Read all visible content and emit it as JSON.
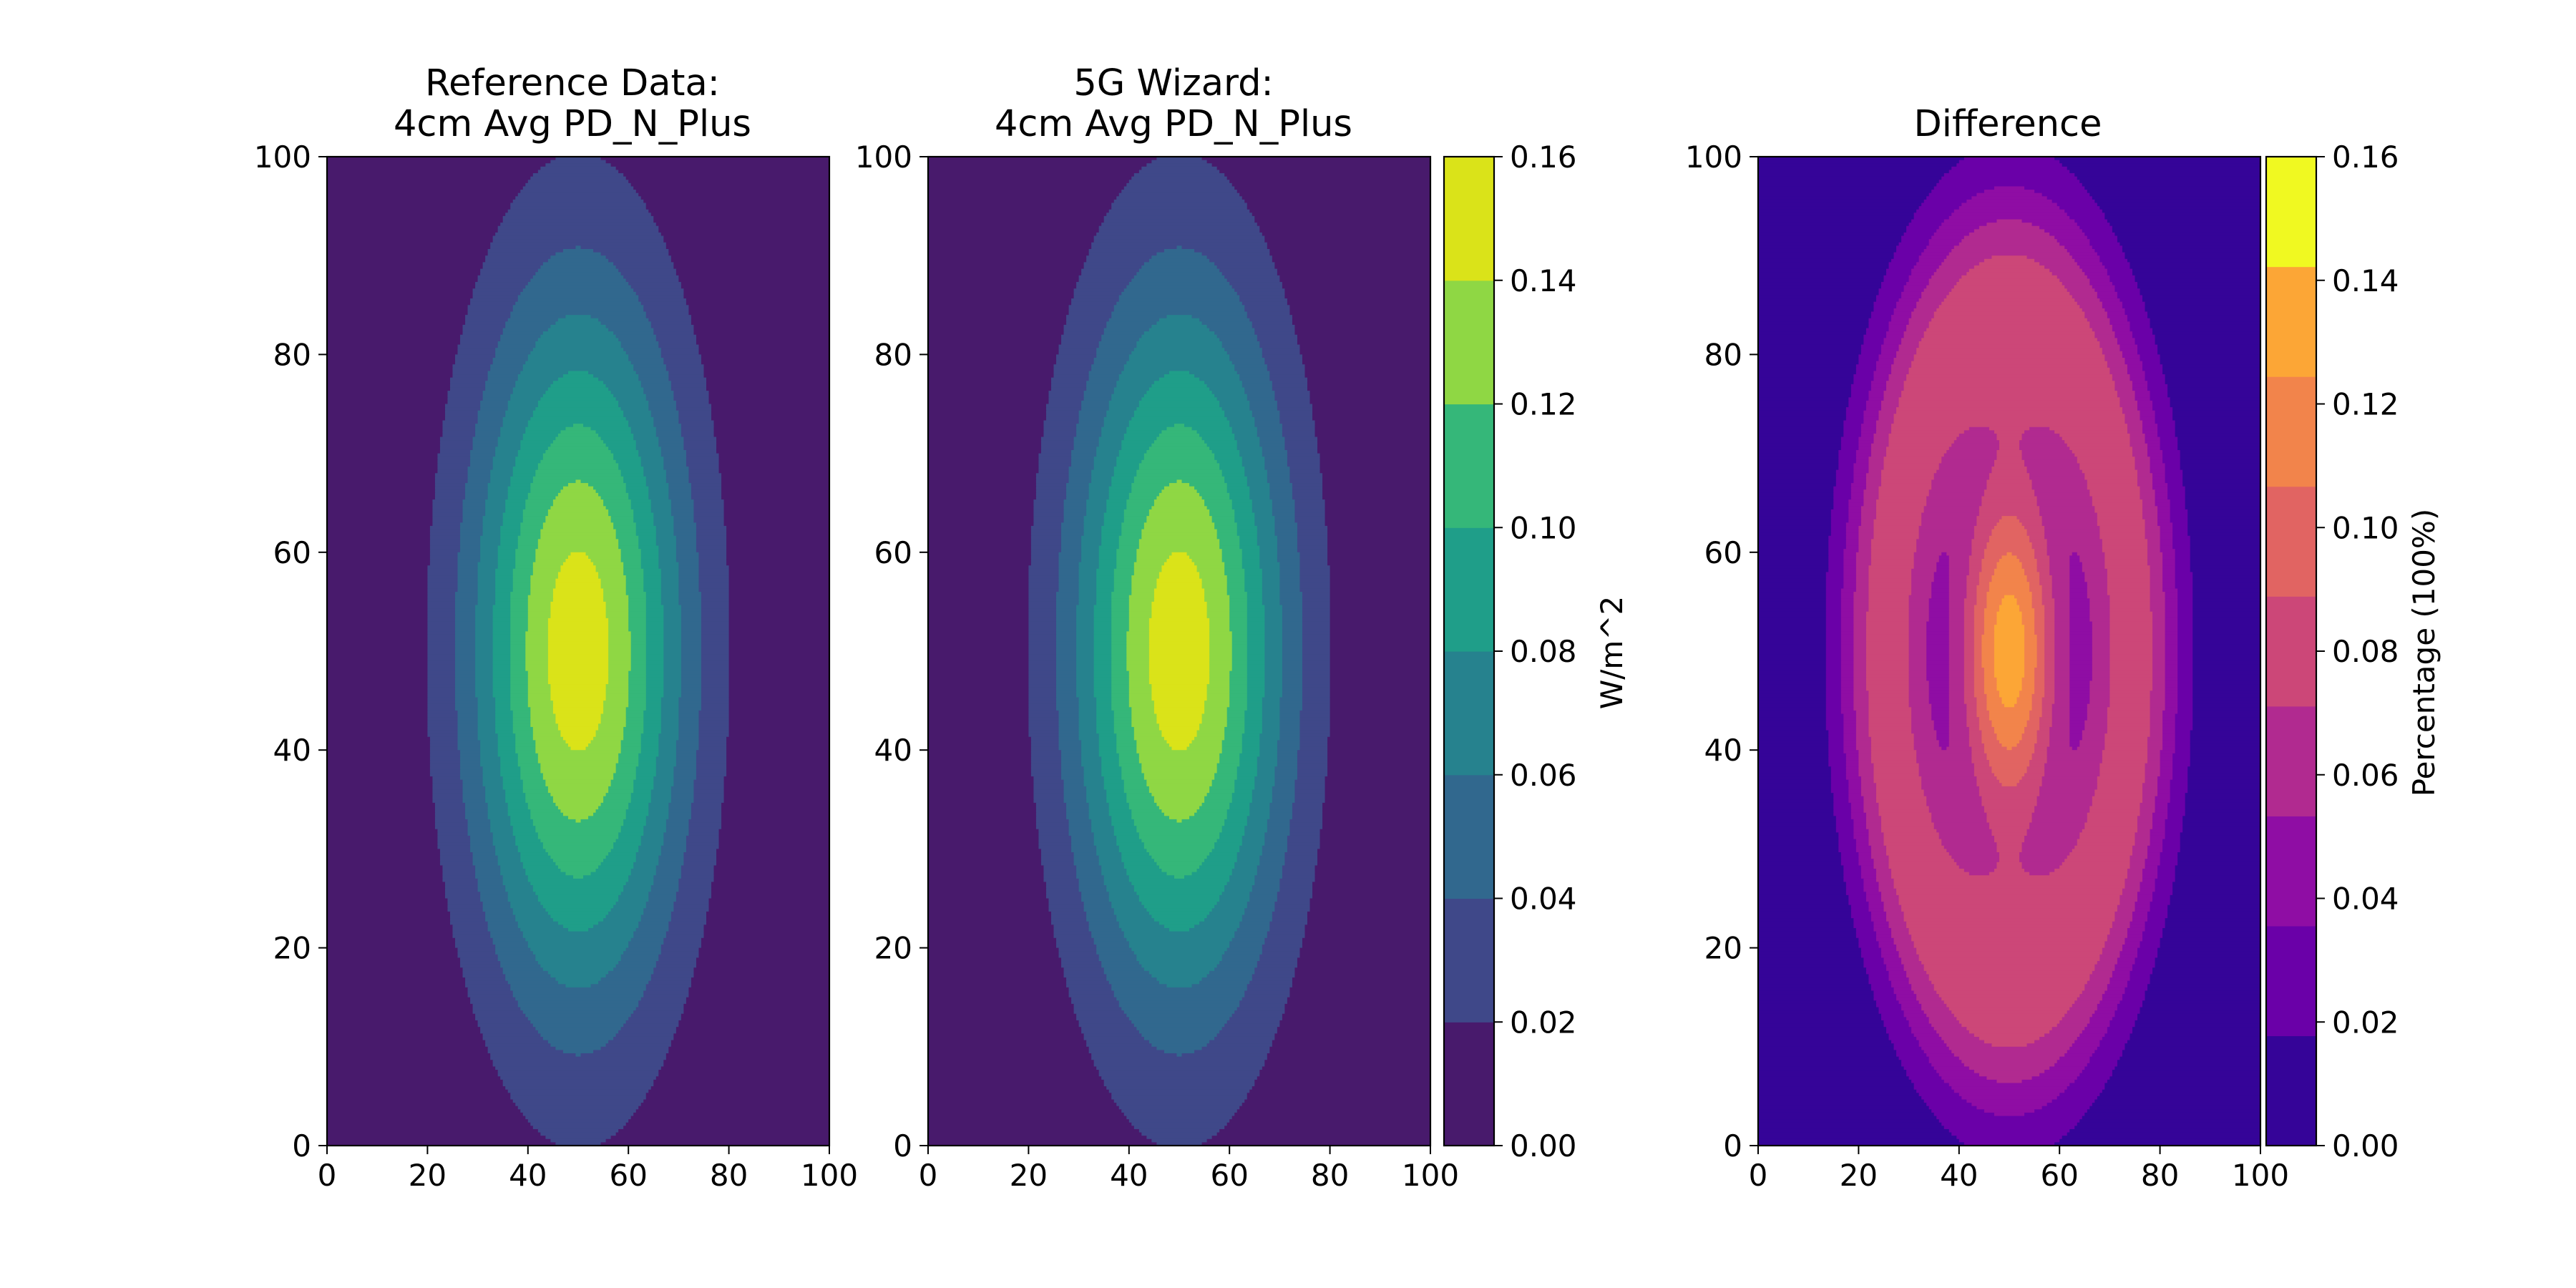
{
  "chart_data": [
    {
      "type": "heatmap",
      "subtype": "filled-contour",
      "title": "Reference Data:\n4cm Avg PD_N_Plus",
      "xlim": [
        0,
        100
      ],
      "ylim": [
        0,
        100
      ],
      "xticks": [
        0,
        20,
        40,
        60,
        80,
        100
      ],
      "yticks": [
        0,
        20,
        40,
        60,
        80,
        100
      ],
      "colormap": "viridis",
      "levels": [
        0,
        0.02,
        0.04,
        0.06,
        0.08,
        0.1,
        0.12,
        0.14,
        0.16
      ],
      "field": {
        "shape": "gaussian",
        "center": [
          50,
          50
        ],
        "peak": 0.152,
        "sigma_x": 15,
        "sigma_y": 25
      },
      "grid": false
    },
    {
      "type": "heatmap",
      "subtype": "filled-contour",
      "title": "5G Wizard:\n4cm Avg PD_N_Plus",
      "xlim": [
        0,
        100
      ],
      "ylim": [
        0,
        100
      ],
      "xticks": [
        0,
        20,
        40,
        60,
        80,
        100
      ],
      "yticks": [
        0,
        20,
        40,
        60,
        80,
        100
      ],
      "colormap": "viridis",
      "levels": [
        0,
        0.02,
        0.04,
        0.06,
        0.08,
        0.1,
        0.12,
        0.14,
        0.16
      ],
      "field": {
        "shape": "gaussian",
        "center": [
          50,
          50
        ],
        "peak": 0.152,
        "sigma_x": 15,
        "sigma_y": 25
      },
      "grid": false,
      "colorbar": {
        "label": "W/m^2",
        "ticks": [
          "0.00",
          "0.02",
          "0.04",
          "0.06",
          "0.08",
          "0.10",
          "0.12",
          "0.14",
          "0.16"
        ],
        "colors": [
          "#481a6c",
          "#3f4889",
          "#31688e",
          "#26828e",
          "#1f9e89",
          "#35b779",
          "#8fd744",
          "#dae319"
        ]
      }
    },
    {
      "type": "heatmap",
      "subtype": "filled-contour",
      "title": "Difference",
      "xlim": [
        0,
        100
      ],
      "ylim": [
        0,
        100
      ],
      "xticks": [
        0,
        20,
        40,
        60,
        80,
        100
      ],
      "yticks": [
        0,
        20,
        40,
        60,
        80,
        100
      ],
      "colormap": "plasma",
      "levels": [
        0,
        0.02,
        0.04,
        0.06,
        0.08,
        0.1,
        0.12,
        0.14,
        0.16
      ],
      "field": {
        "shape": "ring-plus-peak",
        "center": [
          50,
          50
        ],
        "ring_peak": 0.093,
        "center_peak": 0.152
      },
      "grid": false,
      "colorbar": {
        "label": "Percentage (100%)",
        "ticks": [
          "0.00",
          "0.02",
          "0.04",
          "0.06",
          "0.08",
          "0.10",
          "0.12",
          "0.14",
          "0.16"
        ],
        "colors": [
          "#350498",
          "#6a00a8",
          "#8f0da4",
          "#b12a90",
          "#cc4778",
          "#e16462",
          "#f2844b",
          "#fca636",
          "#f0f921"
        ]
      }
    }
  ]
}
